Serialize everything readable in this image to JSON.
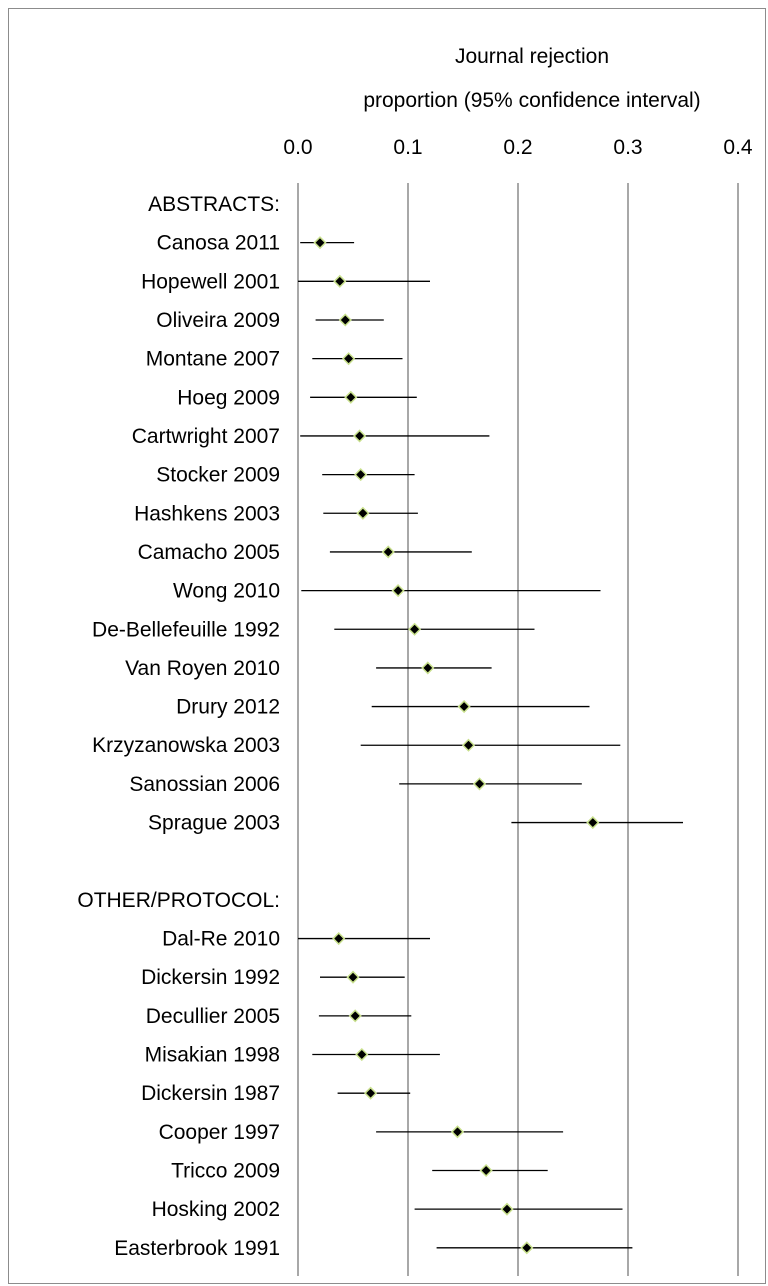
{
  "chart_data": {
    "type": "forest",
    "title_lines": [
      "Journal rejection",
      "proportion (95% confidence interval)"
    ],
    "xlim": [
      0,
      0.4
    ],
    "x_ticks": [
      0.0,
      0.1,
      0.2,
      0.3,
      0.4
    ],
    "x_tick_labels": [
      "0.0",
      "0.1",
      "0.2",
      "0.3",
      "0.4"
    ],
    "grid": "vertical",
    "rows": [
      {
        "label": "ABSTRACTS:",
        "header": true
      },
      {
        "label": "Canosa 2011",
        "estimate": 0.02,
        "lower": 0.002,
        "upper": 0.051
      },
      {
        "label": "Hopewell 2001",
        "estimate": 0.038,
        "lower": 0.0,
        "upper": 0.12
      },
      {
        "label": "Oliveira 2009",
        "estimate": 0.043,
        "lower": 0.016,
        "upper": 0.078
      },
      {
        "label": "Montane 2007",
        "estimate": 0.046,
        "lower": 0.013,
        "upper": 0.095
      },
      {
        "label": "Hoeg 2009",
        "estimate": 0.048,
        "lower": 0.011,
        "upper": 0.108
      },
      {
        "label": "Cartwright 2007",
        "estimate": 0.056,
        "lower": 0.002,
        "upper": 0.174
      },
      {
        "label": "Stocker 2009",
        "estimate": 0.057,
        "lower": 0.022,
        "upper": 0.106
      },
      {
        "label": "Hashkens 2003",
        "estimate": 0.059,
        "lower": 0.023,
        "upper": 0.109
      },
      {
        "label": "Camacho 2005",
        "estimate": 0.082,
        "lower": 0.029,
        "upper": 0.158
      },
      {
        "label": "Wong 2010",
        "estimate": 0.091,
        "lower": 0.003,
        "upper": 0.275
      },
      {
        "label": "De-Bellefeuille 1992",
        "estimate": 0.106,
        "lower": 0.033,
        "upper": 0.215
      },
      {
        "label": "Van Royen 2010",
        "estimate": 0.118,
        "lower": 0.071,
        "upper": 0.176
      },
      {
        "label": "Drury 2012",
        "estimate": 0.151,
        "lower": 0.067,
        "upper": 0.265
      },
      {
        "label": "Krzyzanowska 2003",
        "estimate": 0.155,
        "lower": 0.057,
        "upper": 0.293
      },
      {
        "label": "Sanossian 2006",
        "estimate": 0.165,
        "lower": 0.092,
        "upper": 0.258
      },
      {
        "label": "Sprague 2003",
        "estimate": 0.268,
        "lower": 0.194,
        "upper": 0.35
      },
      {
        "label": "",
        "spacer": true
      },
      {
        "label": "OTHER/PROTOCOL:",
        "header": true
      },
      {
        "label": "Dal-Re 2010",
        "estimate": 0.037,
        "lower": 0.0,
        "upper": 0.12
      },
      {
        "label": "Dickersin 1992",
        "estimate": 0.05,
        "lower": 0.02,
        "upper": 0.097
      },
      {
        "label": "Decullier 2005",
        "estimate": 0.052,
        "lower": 0.019,
        "upper": 0.103
      },
      {
        "label": "Misakian 1998",
        "estimate": 0.058,
        "lower": 0.013,
        "upper": 0.129
      },
      {
        "label": "Dickersin 1987",
        "estimate": 0.066,
        "lower": 0.036,
        "upper": 0.102
      },
      {
        "label": "Cooper 1997",
        "estimate": 0.145,
        "lower": 0.071,
        "upper": 0.241
      },
      {
        "label": "Tricco 2009",
        "estimate": 0.171,
        "lower": 0.122,
        "upper": 0.227
      },
      {
        "label": "Hosking 2002",
        "estimate": 0.19,
        "lower": 0.106,
        "upper": 0.295
      },
      {
        "label": "Easterbrook 1991",
        "estimate": 0.208,
        "lower": 0.126,
        "upper": 0.304
      }
    ],
    "colors": {
      "marker_fill": "#000000",
      "marker_outline": "#c8e08c",
      "grid": "#8c8c8c"
    }
  }
}
